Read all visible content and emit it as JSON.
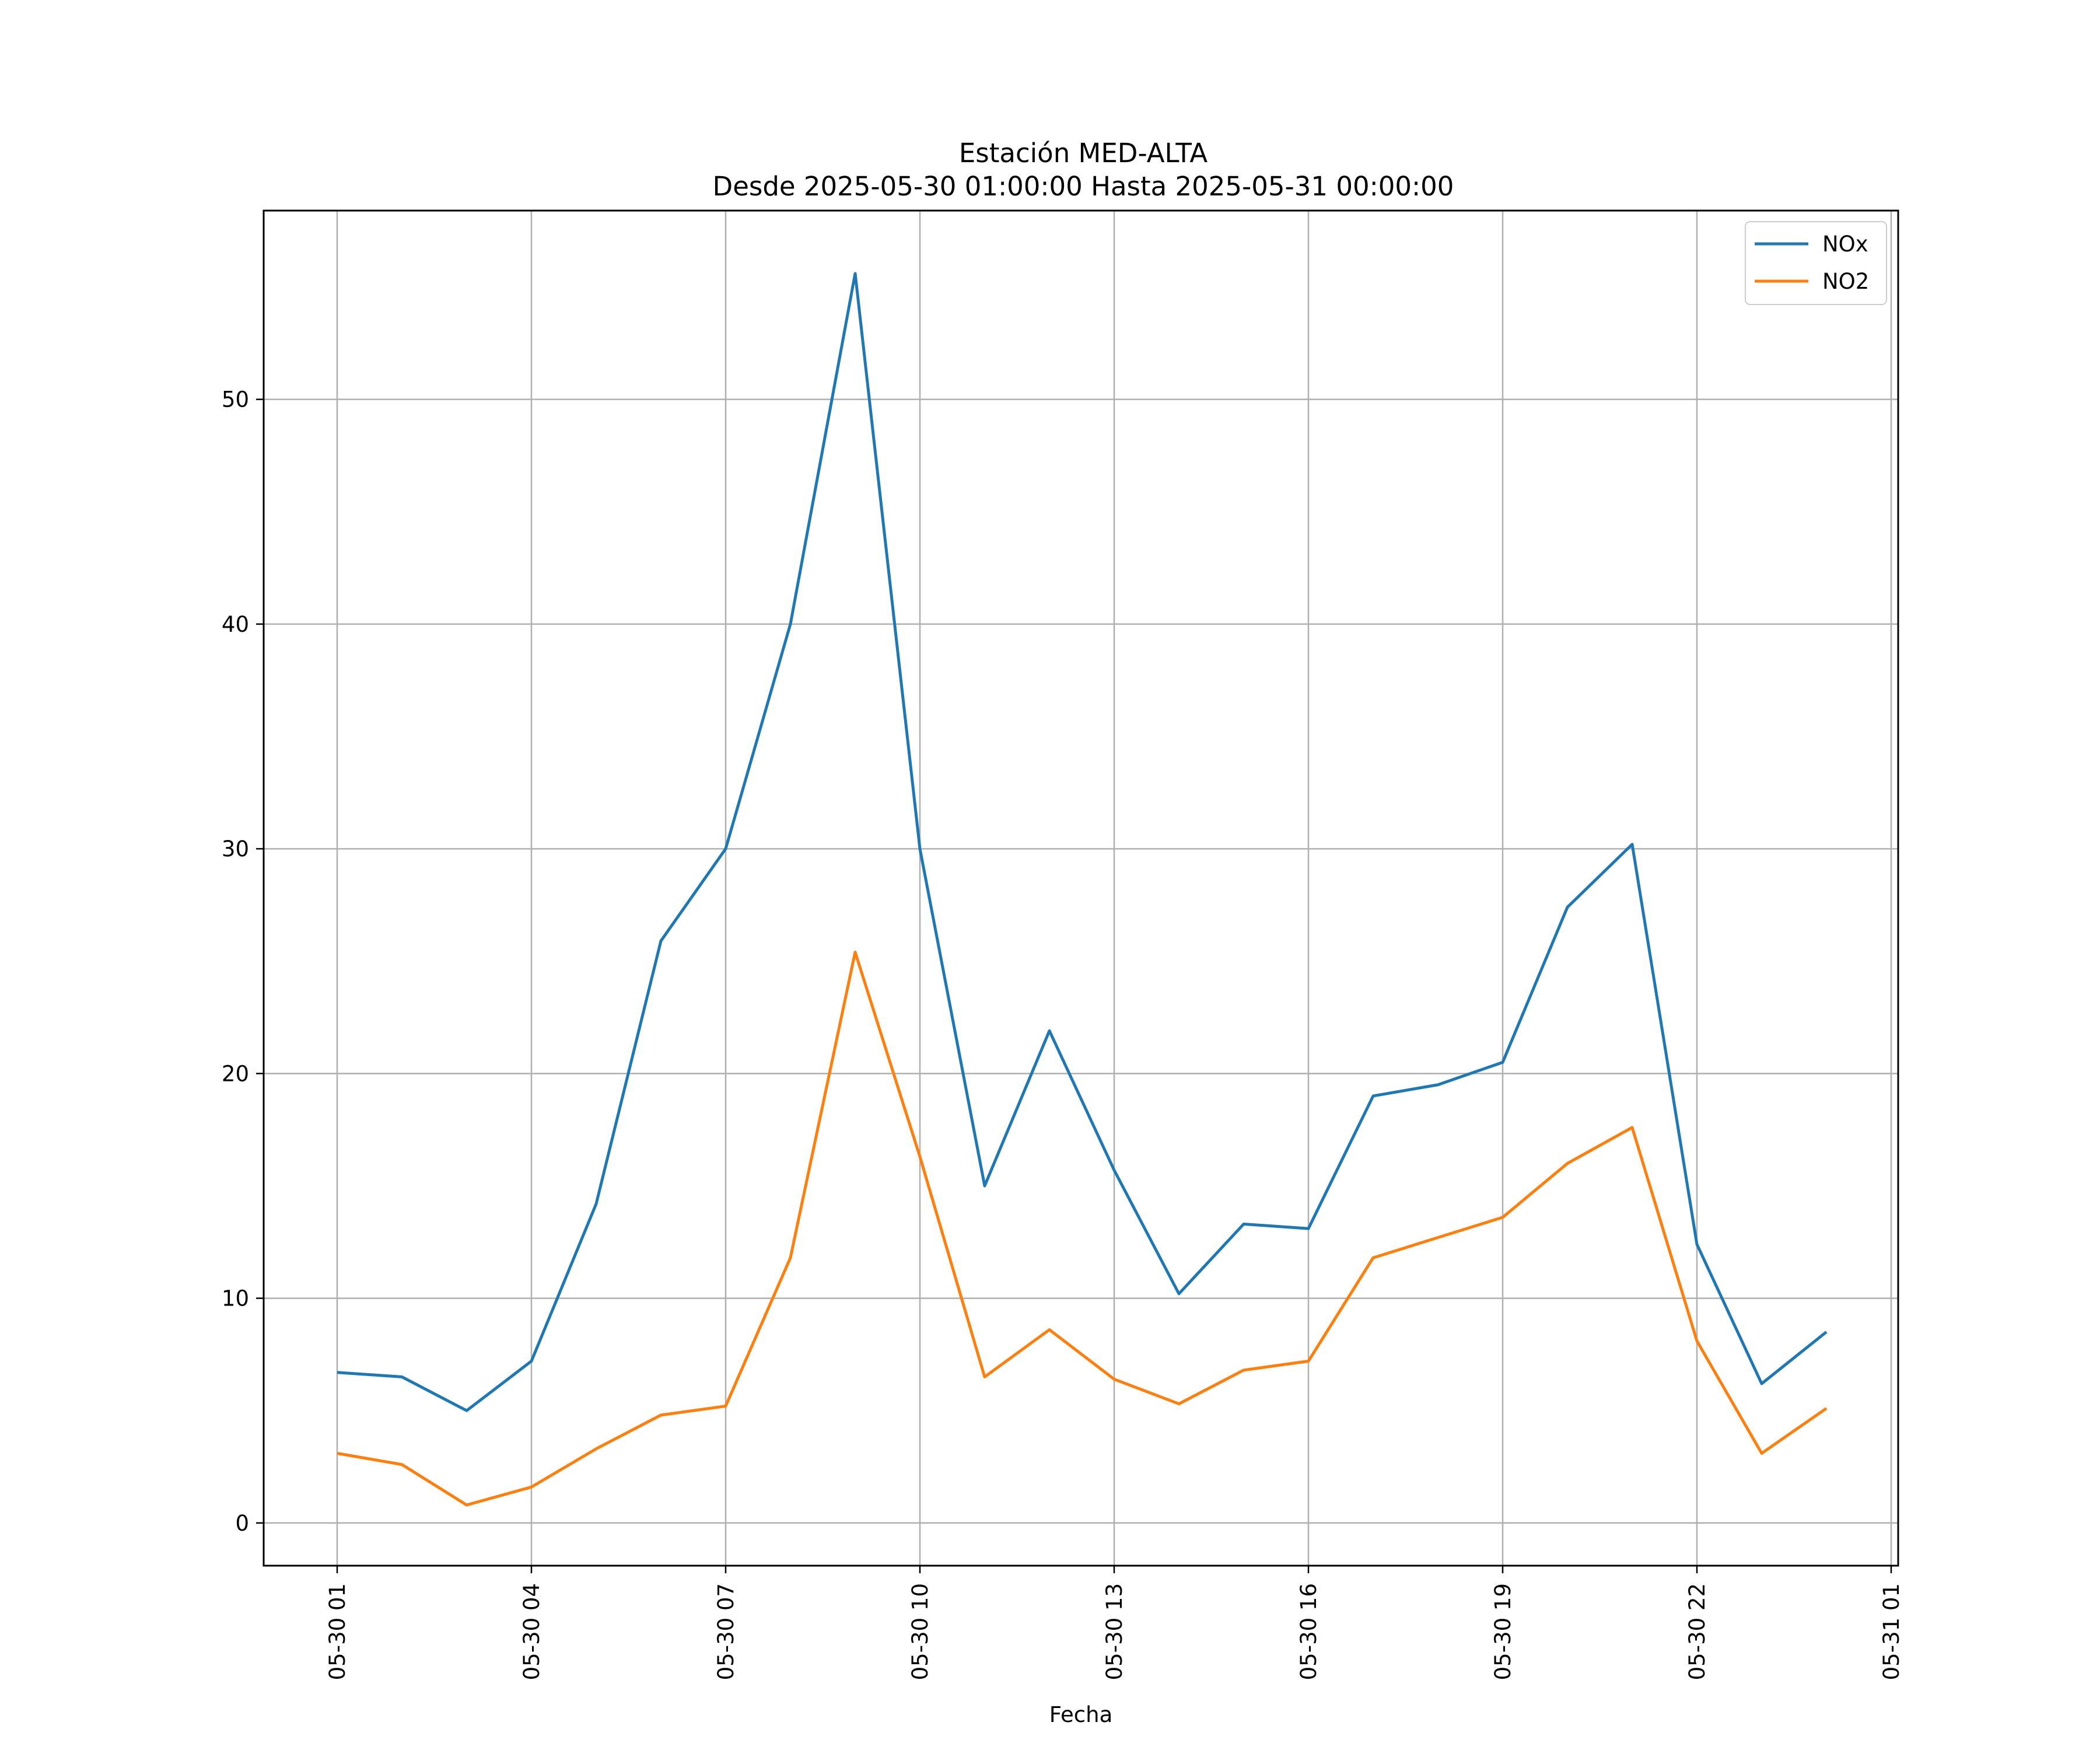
{
  "chart_data": {
    "type": "line",
    "title": "Estación MED-ALTA",
    "subtitle": "Desde 2025-05-30 01:00:00 Hasta 2025-05-31 00:00:00",
    "xlabel": "Fecha",
    "ylabel": "",
    "x": [
      "2025-05-30 01:00",
      "2025-05-30 02:00",
      "2025-05-30 03:00",
      "2025-05-30 04:00",
      "2025-05-30 05:00",
      "2025-05-30 06:00",
      "2025-05-30 07:00",
      "2025-05-30 08:00",
      "2025-05-30 09:00",
      "2025-05-30 10:00",
      "2025-05-30 11:00",
      "2025-05-30 12:00",
      "2025-05-30 13:00",
      "2025-05-30 14:00",
      "2025-05-30 15:00",
      "2025-05-30 16:00",
      "2025-05-30 17:00",
      "2025-05-30 18:00",
      "2025-05-30 19:00",
      "2025-05-30 20:00",
      "2025-05-30 21:00",
      "2025-05-30 22:00",
      "2025-05-30 23:00",
      "2025-05-31 00:00"
    ],
    "series": [
      {
        "name": "NOx",
        "color": "#1f77b4",
        "values": [
          6.7,
          6.5,
          5.0,
          7.2,
          14.2,
          25.9,
          30.0,
          40.0,
          55.6,
          30.0,
          15.0,
          21.9,
          15.7,
          10.2,
          13.3,
          13.1,
          19.0,
          19.5,
          20.5,
          27.4,
          30.2,
          12.4,
          6.2,
          8.5
        ]
      },
      {
        "name": "NO2",
        "color": "#ff7f0e",
        "values": [
          3.1,
          2.6,
          0.8,
          1.6,
          3.3,
          4.8,
          5.2,
          11.8,
          25.4,
          16.3,
          6.5,
          8.6,
          6.4,
          5.3,
          6.8,
          7.2,
          11.8,
          12.7,
          13.6,
          16.0,
          17.6,
          8.1,
          3.1,
          5.1
        ]
      }
    ],
    "xticks": [
      "05-30 01",
      "05-30 04",
      "05-30 07",
      "05-30 10",
      "05-30 13",
      "05-30 16",
      "05-30 19",
      "05-30 22",
      "05-31 01"
    ],
    "yticks": [
      0,
      10,
      20,
      30,
      40,
      50
    ],
    "ylim": [
      -1.9,
      58.4
    ],
    "xlim": [
      "2025-05-30 00:00",
      "2025-05-31 01:00"
    ],
    "grid": true,
    "legend": "top-right"
  }
}
